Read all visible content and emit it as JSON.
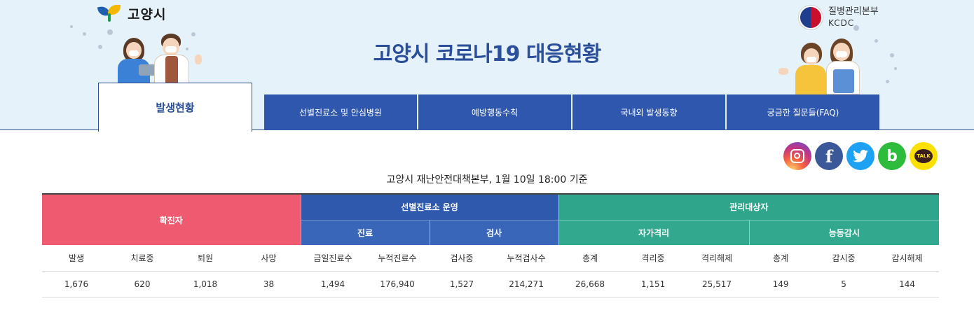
{
  "header": {
    "city_logo_text": "고양시",
    "kcdc_line1": "질병관리본부",
    "kcdc_line2": "KCDC",
    "title": "고양시 코로나19 대응현황"
  },
  "tabs": [
    {
      "label": "발생현황",
      "active": true
    },
    {
      "label": "선별진료소 및 안심병원",
      "active": false
    },
    {
      "label": "예방행동수칙",
      "active": false
    },
    {
      "label": "국내외 발생동향",
      "active": false
    },
    {
      "label": "궁금한 질문들(FAQ)",
      "active": false
    }
  ],
  "social": {
    "facebook_glyph": "f",
    "band_glyph": "b",
    "kakao_glyph": "TALK",
    "icons": [
      "instagram-icon",
      "facebook-icon",
      "twitter-icon",
      "band-icon",
      "kakaotalk-icon"
    ]
  },
  "basis_text": "고양시 재난안전대책본부, 1월 10일 18:00 기준",
  "table": {
    "groups": {
      "confirmed": "확진자",
      "screening": "선별진료소 운영",
      "monitoring": "관리대상자"
    },
    "subgroups": {
      "treatment": "진료",
      "test": "검사",
      "self_quarantine": "자가격리",
      "active_monitoring": "능동감시"
    },
    "columns": [
      "발생",
      "치료중",
      "퇴원",
      "사망",
      "금일진료수",
      "누적진료수",
      "검사중",
      "누적검사수",
      "총계",
      "격리중",
      "격리해제",
      "총계",
      "감시중",
      "감시해제"
    ],
    "values": [
      "1,676",
      "620",
      "1,018",
      "38",
      "1,494",
      "176,940",
      "1,527",
      "214,271",
      "26,668",
      "1,151",
      "25,517",
      "149",
      "5",
      "144"
    ]
  },
  "colors": {
    "confirmed": "#f05a70",
    "screening": "#2e59ad",
    "monitoring": "#2fa58c",
    "title": "#2b4f9b",
    "header_bg": "#e5f2fa"
  }
}
